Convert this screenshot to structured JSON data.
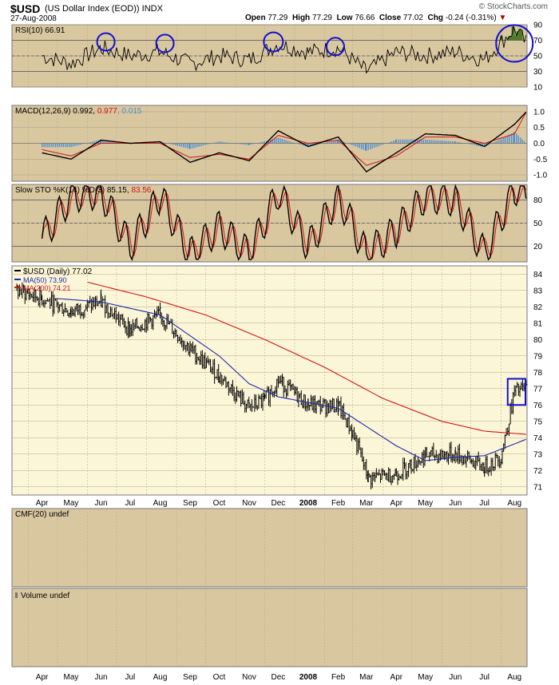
{
  "header": {
    "symbol": "$USD",
    "name": "(US Dollar Index (EOD))",
    "exchange": "INDX",
    "date": "27-Aug-2008",
    "open_label": "Open",
    "open": "77.29",
    "high_label": "High",
    "high": "77.29",
    "low_label": "Low",
    "low": "76.66",
    "close_label": "Close",
    "close": "77.02",
    "chg_label": "Chg",
    "chg": "-0.24 (-0.31%)",
    "watermark": "© StockCharts.com"
  },
  "colors": {
    "panel_bg": "#d9c7a0",
    "price_bg": "#fcf6d8",
    "grid": "#b8a684",
    "price_line": "#000000",
    "ma50": "#1c2aa6",
    "ma200": "#d11414",
    "histogram": "#4a8ed6",
    "rsi_fill_high": "#4f7a2a",
    "rsi_fill_low": "#7a4a38",
    "circle": "#1010d0"
  },
  "chart_data": [
    {
      "type": "line",
      "name": "RSI",
      "title": "RSI(10) 66.91",
      "ylim": [
        10,
        90
      ],
      "y_ticks": [
        "90",
        "70",
        "50",
        "30",
        "10"
      ],
      "reference_lines": [
        70,
        50,
        30
      ],
      "x": [
        "2007-04",
        "2007-05",
        "2007-06",
        "2007-07",
        "2007-08",
        "2007-09",
        "2007-10",
        "2007-11",
        "2007-12",
        "2008-01",
        "2008-02",
        "2008-03",
        "2008-04",
        "2008-05",
        "2008-06",
        "2008-07",
        "2008-08",
        "2008-08-27"
      ],
      "values": [
        50,
        40,
        60,
        50,
        55,
        40,
        50,
        45,
        65,
        55,
        60,
        30,
        55,
        50,
        55,
        45,
        85,
        66.91
      ],
      "annotations": [
        "circle highs Jun 2007",
        "circle highs Aug 2007",
        "circle highs Dec 2007",
        "circle highs Feb 2008",
        "circle overbought Aug 2008"
      ]
    },
    {
      "type": "line",
      "name": "MACD",
      "title_prefix": "MACD(12,26,9)",
      "macd": "0.992",
      "signal": "0.977",
      "hist": "0.015",
      "ylim": [
        -1.2,
        1.2
      ],
      "y_ticks": [
        "1.0",
        "0.5",
        "0.0",
        "-0.5",
        "-1.0"
      ],
      "x": [
        "2007-04",
        "2007-05",
        "2007-06",
        "2007-07",
        "2007-08",
        "2007-09",
        "2007-10",
        "2007-11",
        "2007-12",
        "2008-01",
        "2008-02",
        "2008-03",
        "2008-04",
        "2008-05",
        "2008-06",
        "2008-07",
        "2008-08",
        "2008-08-27"
      ],
      "macd_values": [
        -0.3,
        -0.5,
        0.1,
        0.0,
        0.05,
        -0.6,
        -0.3,
        -0.55,
        0.4,
        -0.1,
        0.2,
        -0.9,
        -0.3,
        0.3,
        0.25,
        -0.1,
        0.6,
        0.99
      ],
      "signal_values": [
        -0.2,
        -0.4,
        0.0,
        0.0,
        0.0,
        -0.45,
        -0.35,
        -0.5,
        0.25,
        0.0,
        0.1,
        -0.7,
        -0.4,
        0.2,
        0.2,
        0.0,
        0.3,
        0.98
      ]
    },
    {
      "type": "line",
      "name": "Slow Stochastic",
      "title_prefix": "Slow STO %K(14) %D(3)",
      "k": "85.15",
      "d": "83.56",
      "ylim": [
        0,
        100
      ],
      "y_ticks": [
        "80",
        "50",
        "20"
      ],
      "reference_lines": [
        80,
        50,
        20
      ],
      "x": [
        "2007-04",
        "2007-05",
        "2007-06",
        "2007-07",
        "2007-08",
        "2007-09",
        "2007-10",
        "2007-11",
        "2007-12",
        "2008-01",
        "2008-02",
        "2008-03",
        "2008-04",
        "2008-05",
        "2008-06",
        "2008-07",
        "2008-08",
        "2008-08-27"
      ],
      "k_values": [
        30,
        85,
        90,
        20,
        85,
        10,
        45,
        10,
        90,
        20,
        85,
        10,
        40,
        85,
        80,
        10,
        95,
        85.15
      ],
      "d_values": [
        35,
        80,
        85,
        25,
        80,
        15,
        40,
        15,
        85,
        25,
        80,
        15,
        35,
        80,
        75,
        15,
        90,
        83.56
      ]
    },
    {
      "type": "line",
      "name": "$USD price",
      "title": "$USD (Daily) 77.02",
      "ylim": [
        70.5,
        84.5
      ],
      "y_ticks": [
        "84",
        "83",
        "82",
        "81",
        "80",
        "79",
        "78",
        "77",
        "76",
        "75",
        "74",
        "73",
        "72",
        "71"
      ],
      "x_ticks": [
        "Apr",
        "May",
        "Jun",
        "Jul",
        "Aug",
        "Sep",
        "Oct",
        "Nov",
        "Dec",
        "2008",
        "Feb",
        "Mar",
        "Apr",
        "May",
        "Jun",
        "Jul",
        "Aug"
      ],
      "x": [
        "2007-03-20",
        "2007-04-15",
        "2007-05-15",
        "2007-06-15",
        "2007-07-15",
        "2007-08-15",
        "2007-09-15",
        "2007-10-15",
        "2007-11-15",
        "2007-12-01",
        "2007-12-15",
        "2008-01-15",
        "2008-02-15",
        "2008-03-01",
        "2008-03-17",
        "2008-04-15",
        "2008-05-15",
        "2008-06-15",
        "2008-07-15",
        "2008-08-01",
        "2008-08-15",
        "2008-08-27"
      ],
      "close": [
        83.0,
        82.5,
        81.7,
        82.3,
        80.6,
        81.5,
        79.4,
        77.8,
        75.8,
        76.3,
        77.5,
        76.0,
        75.9,
        74.3,
        71.5,
        71.8,
        72.9,
        73.0,
        72.2,
        72.8,
        76.8,
        77.02
      ],
      "series": [
        {
          "name": "MA(50) 73.90",
          "values_note": "",
          "x": [
            "2007-05-01",
            "2007-06-15",
            "2007-08-15",
            "2007-10-15",
            "2007-11-15",
            "2007-12-15",
            "2008-02-15",
            "2008-04-15",
            "2008-05-15",
            "2008-06-15",
            "2008-07-15",
            "2008-08-27"
          ],
          "values": [
            82.5,
            82.3,
            81.5,
            79.0,
            77.3,
            76.5,
            75.8,
            73.5,
            72.6,
            72.8,
            72.9,
            73.9
          ]
        },
        {
          "name": "MA(200) 74.21",
          "x": [
            "2007-06-01",
            "2007-08-01",
            "2007-10-01",
            "2007-12-01",
            "2008-02-01",
            "2008-04-01",
            "2008-06-01",
            "2008-07-15",
            "2008-08-27"
          ],
          "values": [
            83.5,
            82.6,
            81.5,
            80.0,
            78.3,
            76.4,
            75.0,
            74.4,
            74.21
          ]
        }
      ],
      "annotations": [
        "rectangle around Aug 2008 highs 76.0-77.6"
      ]
    },
    {
      "type": "line",
      "name": "CMF",
      "title": "CMF(20) undef"
    },
    {
      "type": "bar",
      "name": "Volume",
      "title": "Volume undef",
      "x_ticks": [
        "Apr",
        "May",
        "Jun",
        "Jul",
        "Aug",
        "Sep",
        "Oct",
        "Nov",
        "Dec",
        "2008",
        "Feb",
        "Mar",
        "Apr",
        "May",
        "Jun",
        "Jul",
        "Aug"
      ]
    }
  ]
}
